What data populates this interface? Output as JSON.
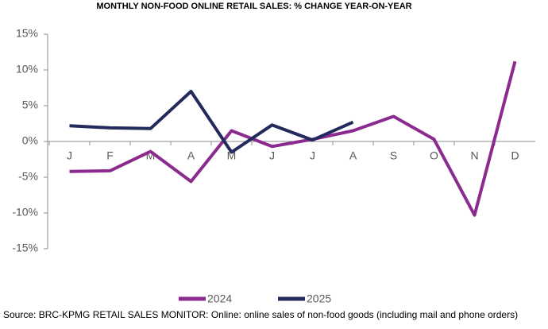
{
  "chart_data": {
    "type": "line",
    "title": "MONTHLY NON-FOOD ONLINE RETAIL SALES: % CHANGE YEAR-ON-YEAR",
    "categories": [
      "J",
      "F",
      "M",
      "A",
      "M",
      "J",
      "J",
      "A",
      "S",
      "O",
      "N",
      "D"
    ],
    "series": [
      {
        "name": "2024",
        "color": "#8b2a8f",
        "values": [
          -4.2,
          -4.1,
          -1.4,
          -5.6,
          1.5,
          -0.7,
          0.3,
          1.5,
          3.5,
          0.3,
          -10.3,
          11.2
        ]
      },
      {
        "name": "2025",
        "color": "#232a5c",
        "values": [
          2.2,
          1.9,
          1.8,
          7.0,
          -1.5,
          2.3,
          0.2,
          2.7,
          null,
          null,
          null,
          null
        ]
      }
    ],
    "ylim": [
      -15,
      15
    ],
    "yticks": [
      {
        "value": -15,
        "label": "-15%"
      },
      {
        "value": -10,
        "label": "-10%"
      },
      {
        "value": -5,
        "label": "-5%"
      },
      {
        "value": 0,
        "label": "0%"
      },
      {
        "value": 5,
        "label": "5%"
      },
      {
        "value": 10,
        "label": "10%"
      },
      {
        "value": 15,
        "label": "15%"
      }
    ],
    "grid": false,
    "legend": "bottom",
    "source": "Source: BRC-KPMG RETAIL SALES MONITOR: Online: online sales of non-food goods (including mail and phone orders)"
  }
}
